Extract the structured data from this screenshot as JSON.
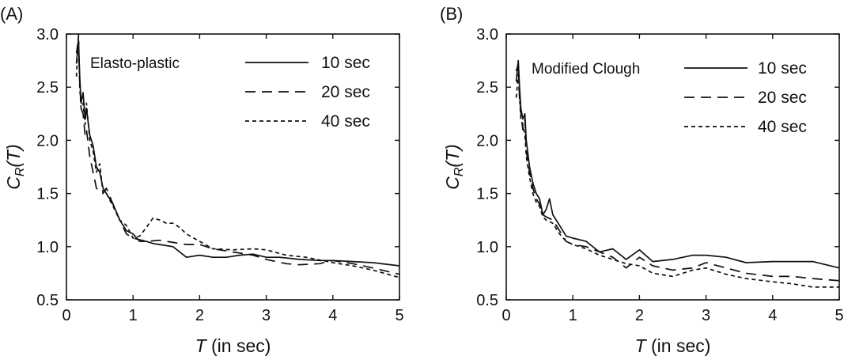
{
  "chart_data": [
    {
      "type": "line",
      "panel_label": "(A)",
      "note": "Elasto-plastic",
      "xlabel_italic": "T",
      "xlabel_rest": " (in sec)",
      "ylabel_main": "C",
      "ylabel_sub": "R",
      "ylabel_arg": "(T)",
      "xlim": [
        0,
        5
      ],
      "ylim": [
        0.5,
        3.0
      ],
      "xticks": [
        0,
        1,
        2,
        3,
        4,
        5
      ],
      "yticks": [
        0.5,
        1.0,
        1.5,
        2.0,
        2.5,
        3.0
      ],
      "xtick_labels": [
        "0",
        "1",
        "2",
        "3",
        "4",
        "5"
      ],
      "ytick_labels": [
        "0.5",
        "1.0",
        "1.5",
        "2.0",
        "2.5",
        "3.0"
      ],
      "legend_position": "top-right",
      "series": [
        {
          "name": "10 sec",
          "style": "solid",
          "x": [
            0.15,
            0.18,
            0.2,
            0.22,
            0.25,
            0.28,
            0.3,
            0.35,
            0.4,
            0.45,
            0.5,
            0.55,
            0.6,
            0.7,
            0.8,
            0.9,
            1.0,
            1.1,
            1.2,
            1.3,
            1.4,
            1.6,
            1.8,
            2.0,
            2.2,
            2.4,
            2.6,
            2.8,
            3.0,
            3.2,
            3.5,
            3.8,
            4.0,
            4.3,
            4.6,
            5.0
          ],
          "y": [
            2.72,
            2.95,
            2.6,
            2.35,
            2.45,
            2.2,
            2.3,
            2.05,
            1.95,
            1.75,
            1.7,
            1.55,
            1.5,
            1.4,
            1.25,
            1.15,
            1.12,
            1.05,
            1.05,
            1.03,
            1.02,
            1.0,
            0.9,
            0.92,
            0.9,
            0.9,
            0.92,
            0.93,
            0.9,
            0.9,
            0.88,
            0.87,
            0.87,
            0.86,
            0.85,
            0.82
          ]
        },
        {
          "name": "20 sec",
          "style": "dashed",
          "x": [
            0.15,
            0.18,
            0.2,
            0.22,
            0.25,
            0.28,
            0.3,
            0.35,
            0.4,
            0.45,
            0.5,
            0.55,
            0.6,
            0.7,
            0.8,
            0.9,
            1.0,
            1.2,
            1.4,
            1.6,
            1.8,
            2.0,
            2.2,
            2.5,
            2.8,
            3.0,
            3.3,
            3.5,
            3.8,
            4.0,
            4.3,
            4.6,
            5.0
          ],
          "y": [
            2.82,
            2.95,
            2.55,
            2.3,
            2.25,
            2.05,
            2.1,
            1.85,
            1.7,
            1.55,
            1.52,
            1.5,
            1.55,
            1.4,
            1.25,
            1.12,
            1.08,
            1.05,
            1.06,
            1.04,
            1.02,
            1.02,
            0.98,
            0.95,
            0.92,
            0.88,
            0.84,
            0.83,
            0.84,
            0.87,
            0.84,
            0.8,
            0.74
          ]
        },
        {
          "name": "40 sec",
          "style": "dotted",
          "x": [
            0.15,
            0.18,
            0.2,
            0.22,
            0.25,
            0.28,
            0.3,
            0.35,
            0.4,
            0.45,
            0.5,
            0.55,
            0.6,
            0.7,
            0.8,
            0.9,
            1.0,
            1.1,
            1.2,
            1.3,
            1.4,
            1.5,
            1.6,
            1.7,
            1.8,
            2.0,
            2.2,
            2.5,
            2.8,
            3.0,
            3.3,
            3.6,
            4.0,
            4.3,
            4.6,
            5.0
          ],
          "y": [
            2.6,
            3.0,
            2.5,
            2.3,
            2.35,
            2.15,
            2.35,
            2.0,
            1.9,
            1.7,
            1.78,
            1.5,
            1.5,
            1.38,
            1.25,
            1.2,
            1.08,
            1.1,
            1.18,
            1.27,
            1.25,
            1.22,
            1.22,
            1.18,
            1.12,
            1.05,
            0.98,
            0.97,
            0.98,
            0.97,
            0.92,
            0.9,
            0.85,
            0.82,
            0.78,
            0.71
          ]
        }
      ]
    },
    {
      "type": "line",
      "panel_label": "(B)",
      "note": "Modified Clough",
      "xlabel_italic": "T",
      "xlabel_rest": " (in sec)",
      "ylabel_main": "C",
      "ylabel_sub": "R",
      "ylabel_arg": "(T)",
      "xlim": [
        0,
        5
      ],
      "ylim": [
        0.5,
        3.0
      ],
      "xticks": [
        0,
        1,
        2,
        3,
        4,
        5
      ],
      "yticks": [
        0.5,
        1.0,
        1.5,
        2.0,
        2.5,
        3.0
      ],
      "xtick_labels": [
        "0",
        "1",
        "2",
        "3",
        "4",
        "5"
      ],
      "ytick_labels": [
        "0.5",
        "1.0",
        "1.5",
        "2.0",
        "2.5",
        "3.0"
      ],
      "legend_position": "top-right",
      "series": [
        {
          "name": "10 sec",
          "style": "solid",
          "x": [
            0.15,
            0.18,
            0.2,
            0.22,
            0.25,
            0.28,
            0.3,
            0.35,
            0.4,
            0.45,
            0.5,
            0.55,
            0.6,
            0.65,
            0.7,
            0.8,
            0.9,
            1.0,
            1.2,
            1.4,
            1.6,
            1.8,
            2.0,
            2.2,
            2.5,
            2.8,
            3.0,
            3.3,
            3.6,
            4.0,
            4.3,
            4.6,
            5.0
          ],
          "y": [
            2.55,
            2.75,
            2.5,
            2.3,
            2.2,
            2.25,
            2.0,
            1.75,
            1.6,
            1.5,
            1.45,
            1.3,
            1.35,
            1.45,
            1.3,
            1.2,
            1.1,
            1.08,
            1.05,
            0.95,
            0.98,
            0.88,
            0.97,
            0.86,
            0.88,
            0.92,
            0.92,
            0.9,
            0.85,
            0.86,
            0.86,
            0.86,
            0.8
          ]
        },
        {
          "name": "20 sec",
          "style": "dashed",
          "x": [
            0.15,
            0.18,
            0.2,
            0.22,
            0.25,
            0.28,
            0.3,
            0.35,
            0.4,
            0.45,
            0.5,
            0.55,
            0.6,
            0.7,
            0.8,
            0.9,
            1.0,
            1.2,
            1.4,
            1.6,
            1.8,
            2.0,
            2.2,
            2.5,
            2.8,
            3.0,
            3.3,
            3.6,
            4.0,
            4.3,
            4.6,
            5.0
          ],
          "y": [
            2.65,
            2.72,
            2.4,
            2.25,
            2.1,
            2.2,
            1.9,
            1.7,
            1.55,
            1.45,
            1.4,
            1.3,
            1.28,
            1.25,
            1.15,
            1.05,
            1.02,
            1.0,
            0.95,
            0.9,
            0.8,
            0.9,
            0.82,
            0.78,
            0.8,
            0.85,
            0.8,
            0.75,
            0.72,
            0.72,
            0.7,
            0.68
          ]
        },
        {
          "name": "40 sec",
          "style": "dotted",
          "x": [
            0.15,
            0.18,
            0.2,
            0.22,
            0.25,
            0.28,
            0.3,
            0.35,
            0.4,
            0.45,
            0.5,
            0.55,
            0.6,
            0.7,
            0.8,
            0.9,
            1.0,
            1.2,
            1.4,
            1.6,
            1.8,
            2.0,
            2.2,
            2.5,
            2.8,
            3.0,
            3.3,
            3.6,
            4.0,
            4.3,
            4.6,
            5.0
          ],
          "y": [
            2.4,
            2.62,
            2.4,
            2.2,
            2.15,
            2.05,
            1.85,
            1.65,
            1.5,
            1.42,
            1.38,
            1.28,
            1.25,
            1.22,
            1.12,
            1.05,
            1.02,
            0.98,
            0.92,
            0.88,
            0.84,
            0.82,
            0.75,
            0.72,
            0.78,
            0.8,
            0.74,
            0.7,
            0.67,
            0.65,
            0.62,
            0.62
          ]
        }
      ]
    }
  ]
}
